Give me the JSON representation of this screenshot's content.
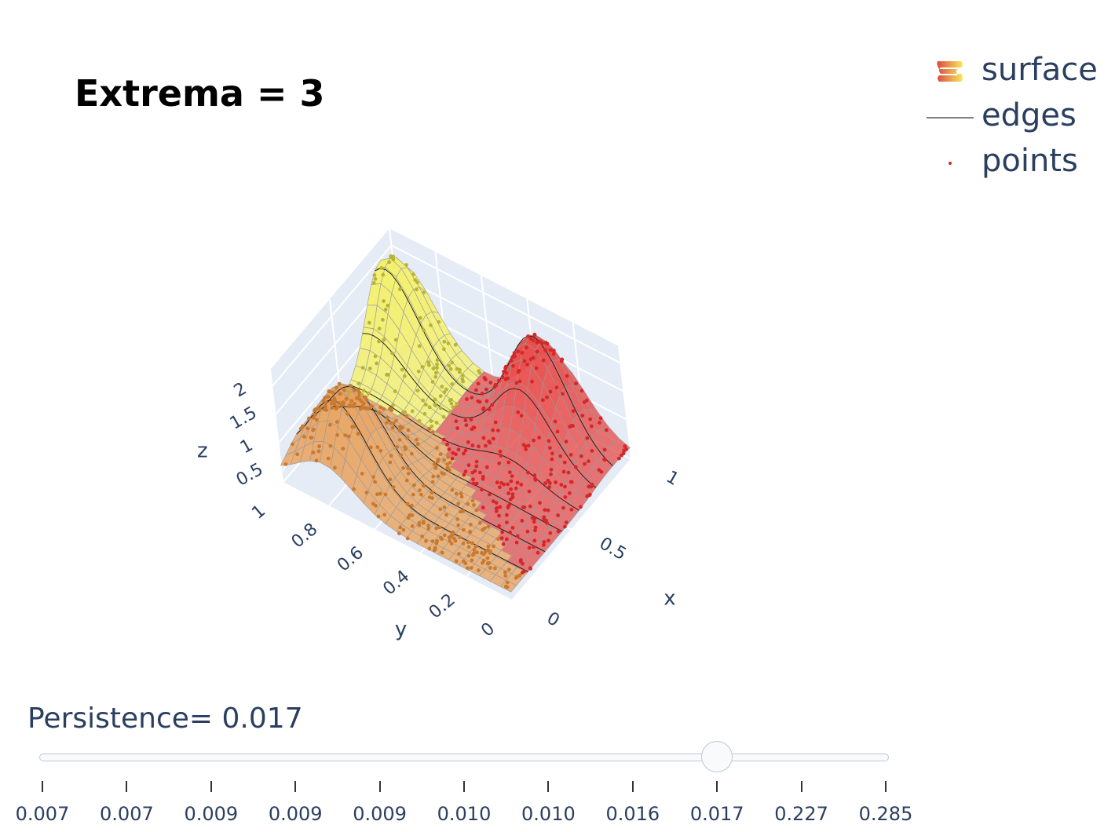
{
  "title": "Extrema = 3",
  "legend": [
    {
      "name": "surface",
      "icon": "surface-gradient-icon"
    },
    {
      "name": "edges",
      "icon": "line-icon",
      "color": "#444444"
    },
    {
      "name": "points",
      "icon": "dot-icon",
      "color": "#d62728"
    }
  ],
  "colors": {
    "orange_peak": "#e8a05a",
    "yellow_peak": "#f4f06a",
    "red_peak": "#e8504e",
    "axis_text": "#2a3f5f",
    "pane": "#e5ecf6"
  },
  "chart_data": {
    "type": "surface",
    "title": "Extrema = 3",
    "xlabel": "x",
    "ylabel": "y",
    "zlabel": "z",
    "x_ticks": [
      "0",
      "0.5",
      "1"
    ],
    "y_ticks": [
      "0",
      "0.2",
      "0.4",
      "0.6",
      "0.8",
      "1"
    ],
    "z_ticks": [
      "0.5",
      "1",
      "1.5",
      "2"
    ],
    "xlim": [
      0,
      1
    ],
    "ylim": [
      0,
      1
    ],
    "zlim": [
      0.3,
      2.3
    ],
    "series": [
      {
        "name": "surface"
      },
      {
        "name": "edges"
      },
      {
        "name": "points"
      }
    ],
    "peaks": [
      {
        "region": "orange",
        "x": 0.2,
        "y": 0.8,
        "z": 1.9
      },
      {
        "region": "yellow",
        "x": 0.9,
        "y": 0.95,
        "z": 2.1
      },
      {
        "region": "red",
        "x": 0.85,
        "y": 0.3,
        "z": 2.2
      }
    ]
  },
  "slider": {
    "prefix": "Persistence= ",
    "current": "0.017",
    "active_index": 8,
    "steps": [
      "0.007",
      "0.007",
      "0.009",
      "0.009",
      "0.009",
      "0.010",
      "0.010",
      "0.016",
      "0.017",
      "0.227",
      "0.285"
    ]
  }
}
